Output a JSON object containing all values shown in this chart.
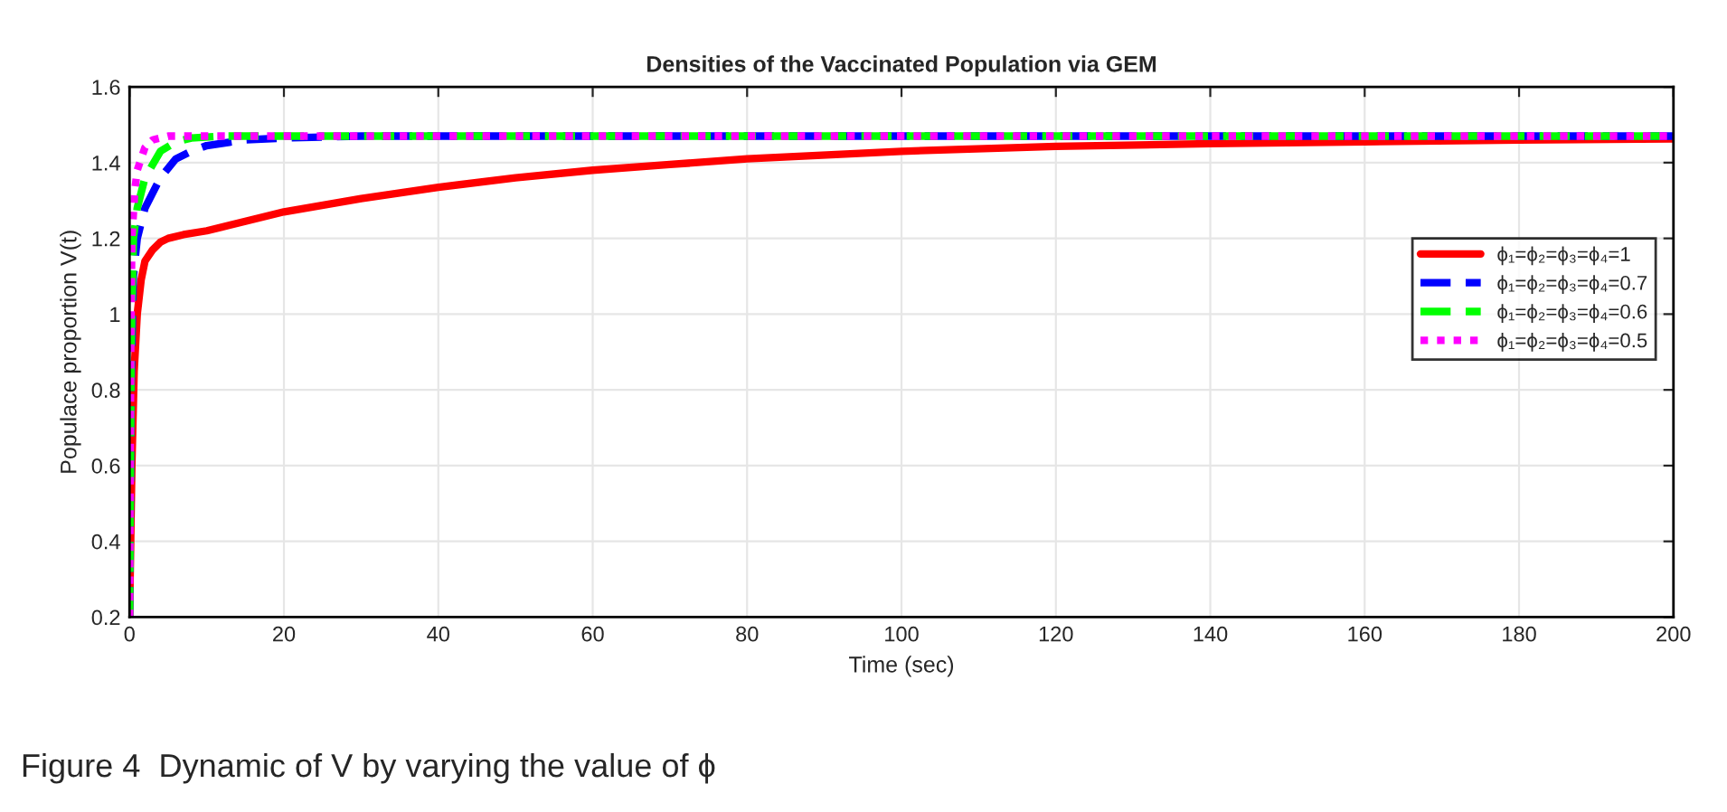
{
  "chart_data": {
    "type": "line",
    "title": "Densities of the Vaccinated Population via GEM",
    "xlabel": "Time (sec)",
    "ylabel": "Populace proportion V(t)",
    "xlim": [
      0,
      200
    ],
    "xticks": [
      0,
      20,
      40,
      60,
      80,
      100,
      120,
      140,
      160,
      180,
      200
    ],
    "ylim": [
      0.2,
      1.6
    ],
    "yticks": [
      0.2,
      0.4,
      0.6,
      0.8,
      1,
      1.2,
      1.4,
      1.6
    ],
    "grid": true,
    "legend": "right",
    "annotations": [
      "Figure 4  Dynamic of V by varying the value of ϕ"
    ],
    "series": [
      {
        "name": "ϕ₁=ϕ₂=ϕ₃=ϕ₄=1",
        "color": "#ff0000",
        "line_style": "solid",
        "x": [
          0,
          0.3,
          0.6,
          1,
          1.5,
          2,
          3,
          4,
          5,
          7,
          10,
          15,
          20,
          30,
          40,
          50,
          60,
          70,
          80,
          100,
          120,
          140,
          160,
          180,
          200
        ],
        "values": [
          0.2,
          0.6,
          0.85,
          1.0,
          1.09,
          1.14,
          1.17,
          1.19,
          1.2,
          1.21,
          1.22,
          1.245,
          1.27,
          1.305,
          1.335,
          1.36,
          1.38,
          1.395,
          1.41,
          1.43,
          1.443,
          1.45,
          1.455,
          1.46,
          1.463
        ]
      },
      {
        "name": "ϕ₁=ϕ₂=ϕ₃=ϕ₄=0.7",
        "color": "#0000ff",
        "line_style": "dashed",
        "x": [
          0,
          0.2,
          0.5,
          1,
          2,
          4,
          6,
          8,
          10,
          15,
          20,
          30,
          200
        ],
        "values": [
          0.2,
          0.8,
          1.1,
          1.2,
          1.28,
          1.36,
          1.41,
          1.43,
          1.445,
          1.46,
          1.465,
          1.47,
          1.47
        ]
      },
      {
        "name": "ϕ₁=ϕ₂=ϕ₃=ϕ₄=0.6",
        "color": "#00ff00",
        "line_style": "dashed",
        "x": [
          0,
          0.2,
          0.5,
          1,
          2,
          4,
          6,
          8,
          12,
          200
        ],
        "values": [
          0.2,
          0.9,
          1.2,
          1.28,
          1.36,
          1.43,
          1.455,
          1.465,
          1.47,
          1.47
        ]
      },
      {
        "name": "ϕ₁=ϕ₂=ϕ₃=ϕ₄=0.5",
        "color": "#ff00ff",
        "line_style": "dotted",
        "x": [
          0,
          0.15,
          0.3,
          0.7,
          1,
          2,
          3,
          5,
          200
        ],
        "values": [
          0.2,
          0.9,
          1.2,
          1.33,
          1.38,
          1.44,
          1.46,
          1.47,
          1.47
        ]
      }
    ]
  }
}
